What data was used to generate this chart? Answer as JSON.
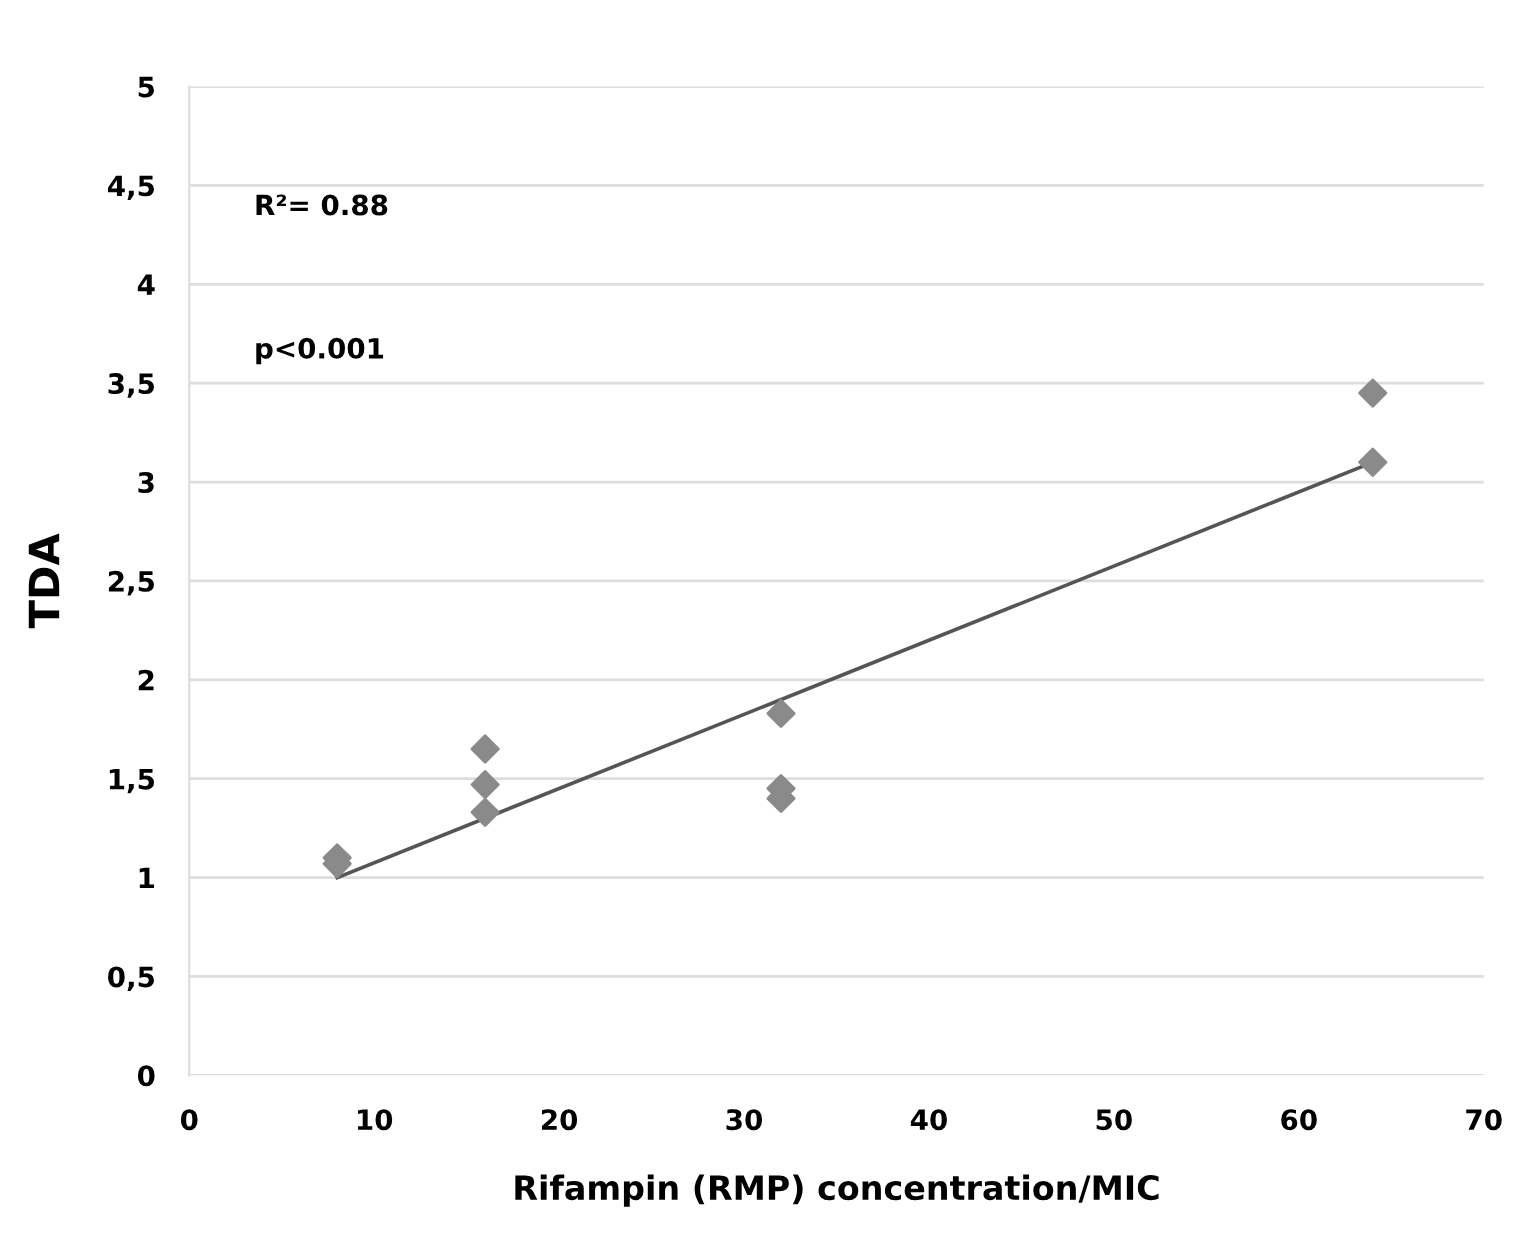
{
  "chart_data": {
    "type": "scatter",
    "xlabel": "Rifampin (RMP) concentration/MIC",
    "ylabel": "TDA",
    "xlim": [
      0,
      70
    ],
    "xticks": [
      0,
      10,
      20,
      30,
      40,
      50,
      60,
      70
    ],
    "ylim": [
      0,
      5
    ],
    "yticks": [
      {
        "value": 0,
        "label": "0"
      },
      {
        "value": 0.5,
        "label": "0,5"
      },
      {
        "value": 1,
        "label": "1"
      },
      {
        "value": 1.5,
        "label": "1,5"
      },
      {
        "value": 2,
        "label": "2"
      },
      {
        "value": 2.5,
        "label": "2,5"
      },
      {
        "value": 3,
        "label": "3"
      },
      {
        "value": 3.5,
        "label": "3,5"
      },
      {
        "value": 4,
        "label": "4"
      },
      {
        "value": 4.5,
        "label": "4,5"
      },
      {
        "value": 5,
        "label": "5"
      }
    ],
    "grid": "y",
    "series": [
      {
        "marker": "diamond",
        "color": "#8a8a8a",
        "x": [
          8,
          8,
          16,
          16,
          16,
          32,
          32,
          32,
          64,
          64
        ],
        "values": [
          1.1,
          1.07,
          1.65,
          1.47,
          1.33,
          1.83,
          1.45,
          1.4,
          3.45,
          3.1
        ]
      },
      {
        "type": "line",
        "color": "#555555",
        "x": [
          8,
          64
        ],
        "values": [
          1.0,
          3.1
        ]
      }
    ],
    "annotations": [
      "R²= 0.88",
      "p<0.001"
    ]
  }
}
